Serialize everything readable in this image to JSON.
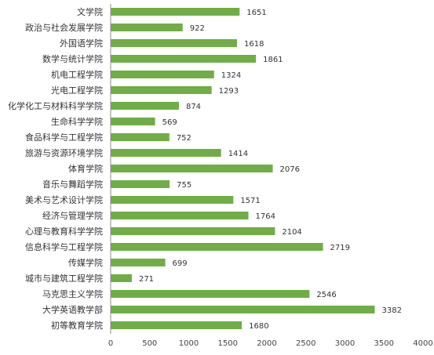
{
  "chart_data": {
    "type": "bar",
    "orientation": "horizontal",
    "categories": [
      "文学院",
      "政治与社会发展学院",
      "外国语学院",
      "数学与统计学院",
      "机电工程学院",
      "光电工程学院",
      "化学化工与材料科学学院",
      "生命科学学院",
      "食品科学与工程学院",
      "旅游与资源环境学院",
      "体育学院",
      "音乐与舞蹈学院",
      "美术与艺术设计学院",
      "经济与管理学院",
      "心理与教育科学学院",
      "信息科学与工程学院",
      "传媒学院",
      "城市与建筑工程学院",
      "马克思主义学院",
      "大学英语教学部",
      "初等教育学院"
    ],
    "values": [
      1651,
      922,
      1618,
      1861,
      1324,
      1293,
      874,
      569,
      752,
      1414,
      2076,
      755,
      1571,
      1764,
      2104,
      2719,
      699,
      271,
      2546,
      3382,
      1680
    ],
    "xlim": [
      0,
      4000
    ],
    "xticks": [
      0,
      500,
      1000,
      1500,
      2000,
      2500,
      3000,
      3500,
      4000
    ],
    "bar_color": "#70AD47",
    "data_labels": true,
    "grid": false,
    "legend": "none"
  }
}
